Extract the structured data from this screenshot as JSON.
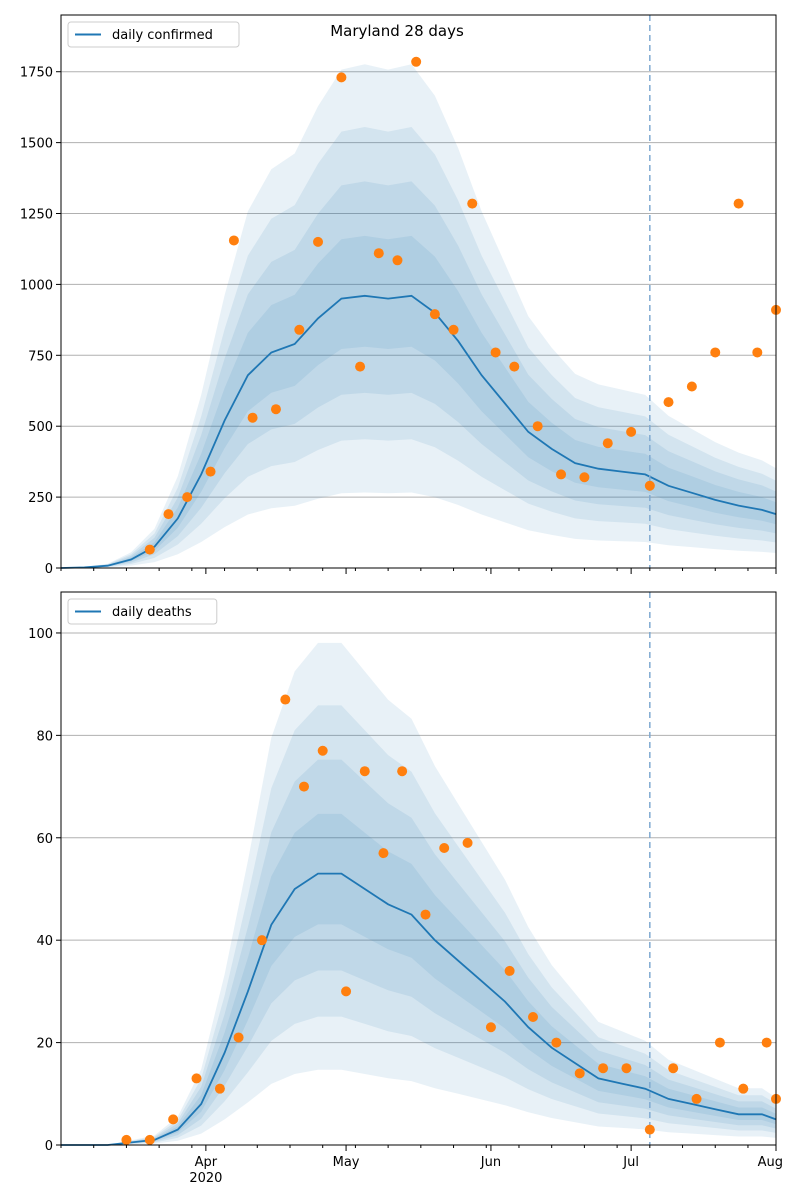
{
  "chart_data": [
    {
      "type": "line",
      "title": "Maryland 28 days",
      "legend": {
        "position": "top-left",
        "entries": [
          "daily confirmed"
        ]
      },
      "x_range": [
        "2020-03-01",
        "2020-08-01"
      ],
      "ylim": [
        0,
        1950
      ],
      "y_ticks": [
        0,
        250,
        500,
        750,
        1000,
        1250,
        1500,
        1750
      ],
      "grid": "y",
      "forecast_start": "2020-07-05",
      "series": [
        {
          "name": "daily confirmed",
          "style": "line",
          "x": [
            "2020-03-01",
            "2020-03-06",
            "2020-03-11",
            "2020-03-16",
            "2020-03-21",
            "2020-03-26",
            "2020-03-31",
            "2020-04-05",
            "2020-04-10",
            "2020-04-15",
            "2020-04-20",
            "2020-04-25",
            "2020-04-30",
            "2020-05-05",
            "2020-05-10",
            "2020-05-15",
            "2020-05-20",
            "2020-05-25",
            "2020-05-30",
            "2020-06-04",
            "2020-06-09",
            "2020-06-14",
            "2020-06-19",
            "2020-06-24",
            "2020-06-29",
            "2020-07-04",
            "2020-07-09",
            "2020-07-14",
            "2020-07-19",
            "2020-07-24",
            "2020-07-29",
            "2020-08-01"
          ],
          "y": [
            0,
            2,
            8,
            30,
            75,
            175,
            330,
            520,
            680,
            760,
            790,
            880,
            950,
            960,
            950,
            960,
            900,
            800,
            680,
            580,
            480,
            420,
            370,
            350,
            340,
            330,
            290,
            265,
            240,
            220,
            205,
            190
          ]
        },
        {
          "name": "observed",
          "style": "points",
          "x": [
            "2020-03-20",
            "2020-03-24",
            "2020-03-28",
            "2020-04-02",
            "2020-04-07",
            "2020-04-11",
            "2020-04-16",
            "2020-04-21",
            "2020-04-25",
            "2020-04-30",
            "2020-05-04",
            "2020-05-08",
            "2020-05-12",
            "2020-05-16",
            "2020-05-20",
            "2020-05-24",
            "2020-05-28",
            "2020-06-02",
            "2020-06-06",
            "2020-06-11",
            "2020-06-16",
            "2020-06-21",
            "2020-06-26",
            "2020-07-01",
            "2020-07-05",
            "2020-07-09",
            "2020-07-14",
            "2020-07-19",
            "2020-07-24",
            "2020-07-28",
            "2020-08-01"
          ],
          "y": [
            65,
            190,
            250,
            340,
            1155,
            530,
            560,
            840,
            1150,
            1730,
            710,
            1110,
            1085,
            1785,
            895,
            840,
            1285,
            760,
            710,
            500,
            330,
            320,
            440,
            480,
            290,
            585,
            640,
            760,
            1285,
            760,
            910
          ]
        }
      ]
    },
    {
      "type": "line",
      "title": "",
      "legend": {
        "position": "top-left",
        "entries": [
          "daily deaths"
        ]
      },
      "x_range": [
        "2020-03-01",
        "2020-08-01"
      ],
      "x_ticks": [
        "Apr",
        "May",
        "Jun",
        "Jul",
        "Aug"
      ],
      "x_sublabel": "2020",
      "ylim": [
        0,
        108
      ],
      "y_ticks": [
        0,
        20,
        40,
        60,
        80,
        100
      ],
      "grid": "y",
      "forecast_start": "2020-07-05",
      "series": [
        {
          "name": "daily deaths",
          "style": "line",
          "x": [
            "2020-03-01",
            "2020-03-11",
            "2020-03-21",
            "2020-03-26",
            "2020-03-31",
            "2020-04-05",
            "2020-04-10",
            "2020-04-15",
            "2020-04-20",
            "2020-04-25",
            "2020-04-30",
            "2020-05-05",
            "2020-05-10",
            "2020-05-15",
            "2020-05-20",
            "2020-05-25",
            "2020-05-30",
            "2020-06-04",
            "2020-06-09",
            "2020-06-14",
            "2020-06-19",
            "2020-06-24",
            "2020-06-29",
            "2020-07-04",
            "2020-07-09",
            "2020-07-14",
            "2020-07-19",
            "2020-07-24",
            "2020-07-29",
            "2020-08-01"
          ],
          "y": [
            0,
            0,
            1,
            3,
            8,
            18,
            30,
            43,
            50,
            53,
            53,
            50,
            47,
            45,
            40,
            36,
            32,
            28,
            23,
            19,
            16,
            13,
            12,
            11,
            9,
            8,
            7,
            6,
            6,
            5
          ]
        },
        {
          "name": "observed",
          "style": "points",
          "x": [
            "2020-03-15",
            "2020-03-20",
            "2020-03-25",
            "2020-03-30",
            "2020-04-04",
            "2020-04-08",
            "2020-04-13",
            "2020-04-18",
            "2020-04-22",
            "2020-04-26",
            "2020-05-01",
            "2020-05-05",
            "2020-05-09",
            "2020-05-13",
            "2020-05-18",
            "2020-05-22",
            "2020-05-27",
            "2020-06-01",
            "2020-06-05",
            "2020-06-10",
            "2020-06-15",
            "2020-06-20",
            "2020-06-25",
            "2020-06-30",
            "2020-07-05",
            "2020-07-10",
            "2020-07-15",
            "2020-07-20",
            "2020-07-25",
            "2020-07-30",
            "2020-08-01"
          ],
          "y": [
            1,
            1,
            5,
            13,
            11,
            21,
            40,
            87,
            70,
            77,
            30,
            73,
            57,
            73,
            45,
            58,
            59,
            23,
            34,
            25,
            20,
            14,
            15,
            15,
            3,
            15,
            9,
            20,
            11,
            20,
            9
          ]
        }
      ]
    }
  ],
  "colors": {
    "line": "#1f77b4",
    "points": "#ff7f0e",
    "band": "#1f77b4",
    "grid": "#b0b0b0",
    "forecast_line": "#7fa9d1"
  }
}
